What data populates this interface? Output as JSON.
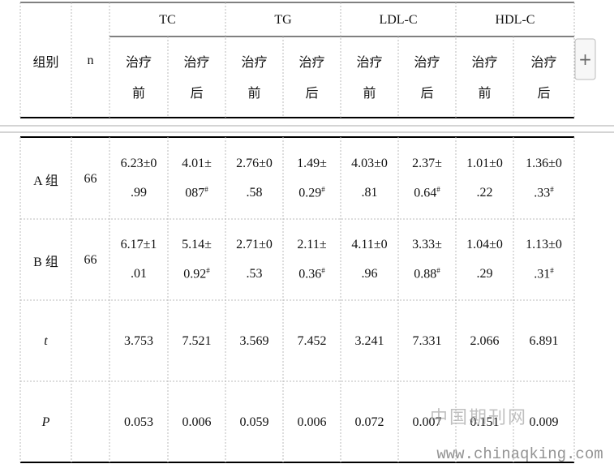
{
  "header": {
    "group_label": "组别",
    "n_label": "n",
    "groups": [
      "TC",
      "TG",
      "LDL-C",
      "HDL-C"
    ],
    "sub": [
      [
        "治疗",
        "前"
      ],
      [
        "治疗",
        "后"
      ]
    ]
  },
  "table": {
    "rows": [
      {
        "label": "A 组",
        "n": "66",
        "cells": [
          {
            "l1": "6.23±0",
            "l2": ".99"
          },
          {
            "l1": "4.01±",
            "l2": "087",
            "sup": "#"
          },
          {
            "l1": "2.76±0",
            "l2": ".58"
          },
          {
            "l1": "1.49±",
            "l2": "0.29",
            "sup": "#"
          },
          {
            "l1": "4.03±0",
            "l2": ".81"
          },
          {
            "l1": "2.37±",
            "l2": "0.64",
            "sup": "#"
          },
          {
            "l1": "1.01±0",
            "l2": ".22"
          },
          {
            "l1": "1.36±0",
            "l2": ".33",
            "sup": "#"
          }
        ]
      },
      {
        "label": "B 组",
        "n": "66",
        "cells": [
          {
            "l1": "6.17±1",
            "l2": ".01"
          },
          {
            "l1": "5.14±",
            "l2": "0.92",
            "sup": "#"
          },
          {
            "l1": "2.71±0",
            "l2": ".53"
          },
          {
            "l1": "2.11±",
            "l2": "0.36",
            "sup": "#"
          },
          {
            "l1": "4.11±0",
            "l2": ".96"
          },
          {
            "l1": "3.33±",
            "l2": "0.88",
            "sup": "#"
          },
          {
            "l1": "1.04±0",
            "l2": ".29"
          },
          {
            "l1": "1.13±0",
            "l2": ".31",
            "sup": "#"
          }
        ]
      },
      {
        "label": "t",
        "italic": true,
        "n": "",
        "cells": [
          {
            "l1": "3.753"
          },
          {
            "l1": "7.521"
          },
          {
            "l1": "3.569"
          },
          {
            "l1": "7.452"
          },
          {
            "l1": "3.241"
          },
          {
            "l1": "7.331"
          },
          {
            "l1": "2.066"
          },
          {
            "l1": "6.891"
          }
        ]
      },
      {
        "label": "P",
        "italic": true,
        "n": "",
        "cells": [
          {
            "l1": "0.053"
          },
          {
            "l1": "0.006"
          },
          {
            "l1": "0.059"
          },
          {
            "l1": "0.006"
          },
          {
            "l1": "0.072"
          },
          {
            "l1": "0.007"
          },
          {
            "l1": "0.151"
          },
          {
            "l1": "0.009"
          }
        ]
      }
    ]
  },
  "watermark": {
    "cn": "中国期刊网",
    "url": "www.chinaqking.com"
  },
  "button": {
    "label": "+"
  }
}
